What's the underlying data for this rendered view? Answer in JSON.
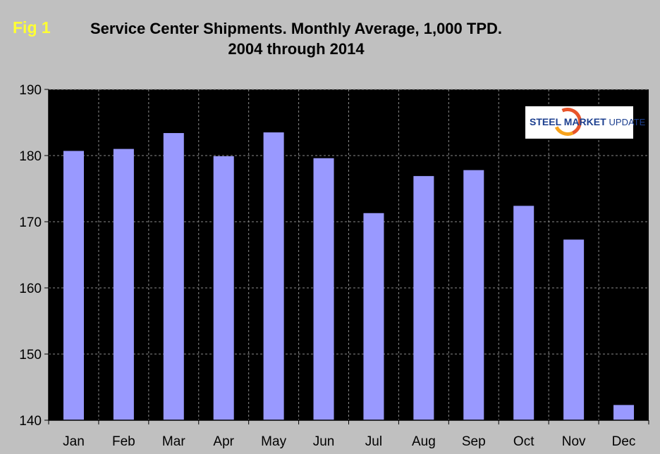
{
  "figure_label": "Fig 1",
  "title_line1": "Service Center Shipments. Monthly Average, 1,000 TPD.",
  "title_line2": "2004 through 2014",
  "logo": {
    "text_main": "STEEL MARKET",
    "text_sub": "UPDATE"
  },
  "colors": {
    "background": "#c0c0c0",
    "plot_background": "#000000",
    "bar": "#9999ff",
    "grid": "#8a8a8a",
    "figure_label": "#ffff33"
  },
  "chart_data": {
    "type": "bar",
    "title": "Service Center Shipments. Monthly Average, 1,000 TPD.",
    "subtitle": "2004 through 2014",
    "xlabel": "",
    "ylabel": "",
    "categories": [
      "Jan",
      "Feb",
      "Mar",
      "Apr",
      "May",
      "Jun",
      "Jul",
      "Aug",
      "Sep",
      "Oct",
      "Nov",
      "Dec"
    ],
    "values": [
      180.7,
      181.0,
      183.4,
      179.9,
      183.5,
      179.6,
      171.3,
      176.9,
      177.8,
      172.4,
      167.3,
      142.3
    ],
    "ylim": [
      140,
      190
    ],
    "yticks": [
      140,
      150,
      160,
      170,
      180,
      190
    ],
    "grid": true,
    "grid_style": "dashed"
  }
}
